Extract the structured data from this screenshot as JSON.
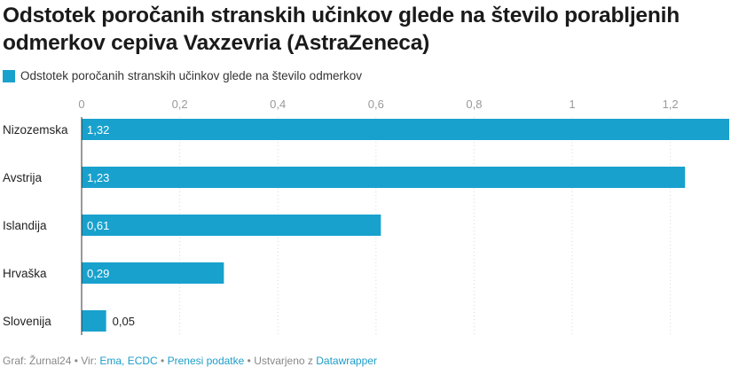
{
  "title": "Odstotek poročanih stranskih učinkov glede na število porabljenih odmerkov cepiva Vaxzevria (AstraZeneca)",
  "legend_label": "Odstotek poročanih stranskih učinkov glede na število odmerkov",
  "colors": {
    "bar": "#18a1cd",
    "grid": "#d9d9d9",
    "tick_text": "#9a9a9a",
    "axis": "#333333"
  },
  "chart_data": {
    "type": "bar",
    "orientation": "horizontal",
    "title": "Odstotek poročanih stranskih učinkov glede na število porabljenih odmerkov cepiva Vaxzevria (AstraZeneca)",
    "categories": [
      "Nizozemska",
      "Avstrija",
      "Islandija",
      "Hrvaška",
      "Slovenija"
    ],
    "series": [
      {
        "name": "Odstotek poročanih stranskih učinkov glede na število odmerkov",
        "values": [
          1.32,
          1.23,
          0.61,
          0.29,
          0.05
        ]
      }
    ],
    "value_labels": [
      "1,32",
      "1,23",
      "0,61",
      "0,29",
      "0,05"
    ],
    "xlim": [
      0,
      1.32
    ],
    "ticks": [
      0,
      0.2,
      0.4,
      0.6,
      0.8,
      1.0,
      1.2
    ],
    "tick_labels": [
      "0",
      "0,2",
      "0,4",
      "0,6",
      "0,8",
      "1",
      "1,2"
    ],
    "grid": true,
    "legend_position": "top-left"
  },
  "footer": {
    "prefix": "Graf: Žurnal24",
    "sep1": " • ",
    "source_label": "Vir: ",
    "source_link": "Ema, ECDC",
    "sep2": " • ",
    "download_link": "Prenesi podatke",
    "sep3": " • ",
    "created_label": "Ustvarjeno z ",
    "created_link": "Datawrapper"
  }
}
